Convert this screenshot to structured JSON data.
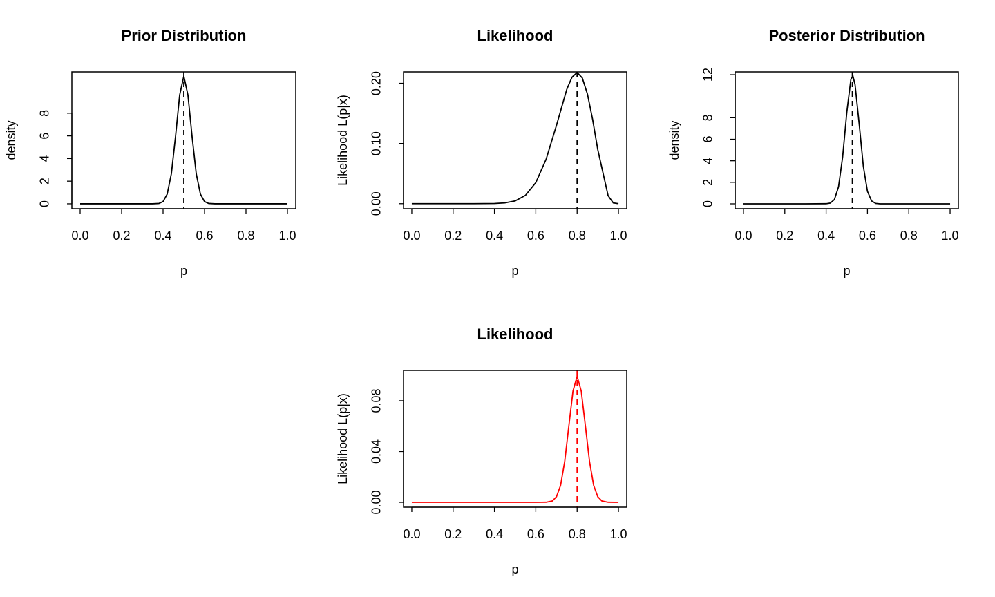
{
  "chart_data": [
    {
      "type": "line",
      "title": "Prior Distribution",
      "x_label": "p",
      "y_label": "density",
      "color": "#000000",
      "x": [
        0,
        0.1,
        0.2,
        0.3,
        0.35,
        0.38,
        0.4,
        0.42,
        0.44,
        0.46,
        0.48,
        0.5,
        0.52,
        0.54,
        0.56,
        0.58,
        0.6,
        0.62,
        0.65,
        0.7,
        0.8,
        0.9,
        1
      ],
      "values": [
        0,
        0,
        0,
        0,
        0,
        0.03,
        0.2,
        0.86,
        2.66,
        5.93,
        9.6,
        11.27,
        9.6,
        5.93,
        2.66,
        0.86,
        0.2,
        0.03,
        0,
        0,
        0,
        0,
        0
      ],
      "vline": 0.5,
      "xlim": [
        -0.04,
        1.04
      ],
      "xticks": [
        {
          "value": 0,
          "label": "0.0"
        },
        {
          "value": 0.2,
          "label": "0.2"
        },
        {
          "value": 0.4,
          "label": "0.4"
        },
        {
          "value": 0.6,
          "label": "0.6"
        },
        {
          "value": 0.8,
          "label": "0.8"
        },
        {
          "value": 1,
          "label": "1.0"
        }
      ],
      "ylim": [
        -0.43,
        11.65
      ],
      "yticks": [
        0,
        2,
        4,
        6,
        8
      ]
    },
    {
      "type": "line",
      "title": "Likelihood",
      "x_label": "p",
      "y_label": "Likelihood L(p|x)",
      "color": "#000000",
      "x": [
        0,
        0.1,
        0.2,
        0.3,
        0.4,
        0.45,
        0.5,
        0.55,
        0.6,
        0.65,
        0.7,
        0.75,
        0.775,
        0.8,
        0.825,
        0.85,
        0.875,
        0.9,
        0.95,
        0.975,
        1
      ],
      "values": [
        0,
        0,
        0,
        0,
        0.0003,
        0.0013,
        0.0046,
        0.0139,
        0.035,
        0.0738,
        0.13,
        0.19,
        0.21,
        0.218,
        0.209,
        0.182,
        0.14,
        0.0898,
        0.0133,
        0.0013,
        0
      ],
      "vline": 0.8,
      "xlim": [
        -0.04,
        1.04
      ],
      "xticks": [
        {
          "value": 0,
          "label": "0.0"
        },
        {
          "value": 0.2,
          "label": "0.2"
        },
        {
          "value": 0.4,
          "label": "0.4"
        },
        {
          "value": 0.6,
          "label": "0.6"
        },
        {
          "value": 0.8,
          "label": "0.8"
        },
        {
          "value": 1,
          "label": "1.0"
        }
      ],
      "ylim": [
        -0.0083,
        0.219
      ],
      "yticks": [
        {
          "value": 0,
          "label": "0.00"
        },
        {
          "value": 0.1,
          "label": "0.10"
        },
        {
          "value": 0.2,
          "label": "0.20"
        }
      ]
    },
    {
      "type": "line",
      "title": "Posterior Distribution",
      "x_label": "p",
      "y_label": "density",
      "color": "#000000",
      "x": [
        0,
        0.1,
        0.2,
        0.3,
        0.4,
        0.42,
        0.44,
        0.46,
        0.48,
        0.5,
        0.52,
        0.53,
        0.54,
        0.56,
        0.58,
        0.6,
        0.62,
        0.64,
        0.66,
        0.7,
        0.8,
        0.9,
        1
      ],
      "values": [
        0,
        0,
        0,
        0,
        0.01,
        0.07,
        0.4,
        1.58,
        4.37,
        8.49,
        11.58,
        11.86,
        11.08,
        7.43,
        3.5,
        1.16,
        0.27,
        0.04,
        0,
        0,
        0,
        0,
        0
      ],
      "vline": 0.527,
      "xlim": [
        -0.04,
        1.04
      ],
      "xticks": [
        {
          "value": 0,
          "label": "0.0"
        },
        {
          "value": 0.2,
          "label": "0.2"
        },
        {
          "value": 0.4,
          "label": "0.4"
        },
        {
          "value": 0.6,
          "label": "0.6"
        },
        {
          "value": 0.8,
          "label": "0.8"
        },
        {
          "value": 1,
          "label": "1.0"
        }
      ],
      "ylim": [
        -0.45,
        12.26
      ],
      "yticks": [
        0,
        2,
        4,
        6,
        8,
        12
      ]
    },
    {
      "type": "line",
      "title": "Likelihood",
      "x_label": "p",
      "y_label": "Likelihood L(p|x)",
      "color": "#ff0000",
      "x": [
        0,
        0.2,
        0.4,
        0.6,
        0.65,
        0.68,
        0.7,
        0.72,
        0.74,
        0.76,
        0.78,
        0.8,
        0.82,
        0.84,
        0.86,
        0.88,
        0.9,
        0.92,
        0.95,
        1
      ],
      "values": [
        0,
        0,
        0,
        0,
        0.0001,
        0.0011,
        0.0044,
        0.0134,
        0.0322,
        0.0602,
        0.0876,
        0.0993,
        0.0876,
        0.0602,
        0.0322,
        0.0134,
        0.0044,
        0.0011,
        0.0001,
        0
      ],
      "vline": 0.8,
      "xlim": [
        -0.04,
        1.04
      ],
      "xticks": [
        {
          "value": 0,
          "label": "0.0"
        },
        {
          "value": 0.2,
          "label": "0.2"
        },
        {
          "value": 0.4,
          "label": "0.4"
        },
        {
          "value": 0.6,
          "label": "0.6"
        },
        {
          "value": 0.8,
          "label": "0.8"
        },
        {
          "value": 1,
          "label": "1.0"
        }
      ],
      "ylim": [
        -0.0038,
        0.1039
      ],
      "yticks": [
        {
          "value": 0,
          "label": "0.00"
        },
        {
          "value": 0.04,
          "label": "0.04"
        },
        {
          "value": 0.08,
          "label": "0.08"
        }
      ]
    }
  ]
}
